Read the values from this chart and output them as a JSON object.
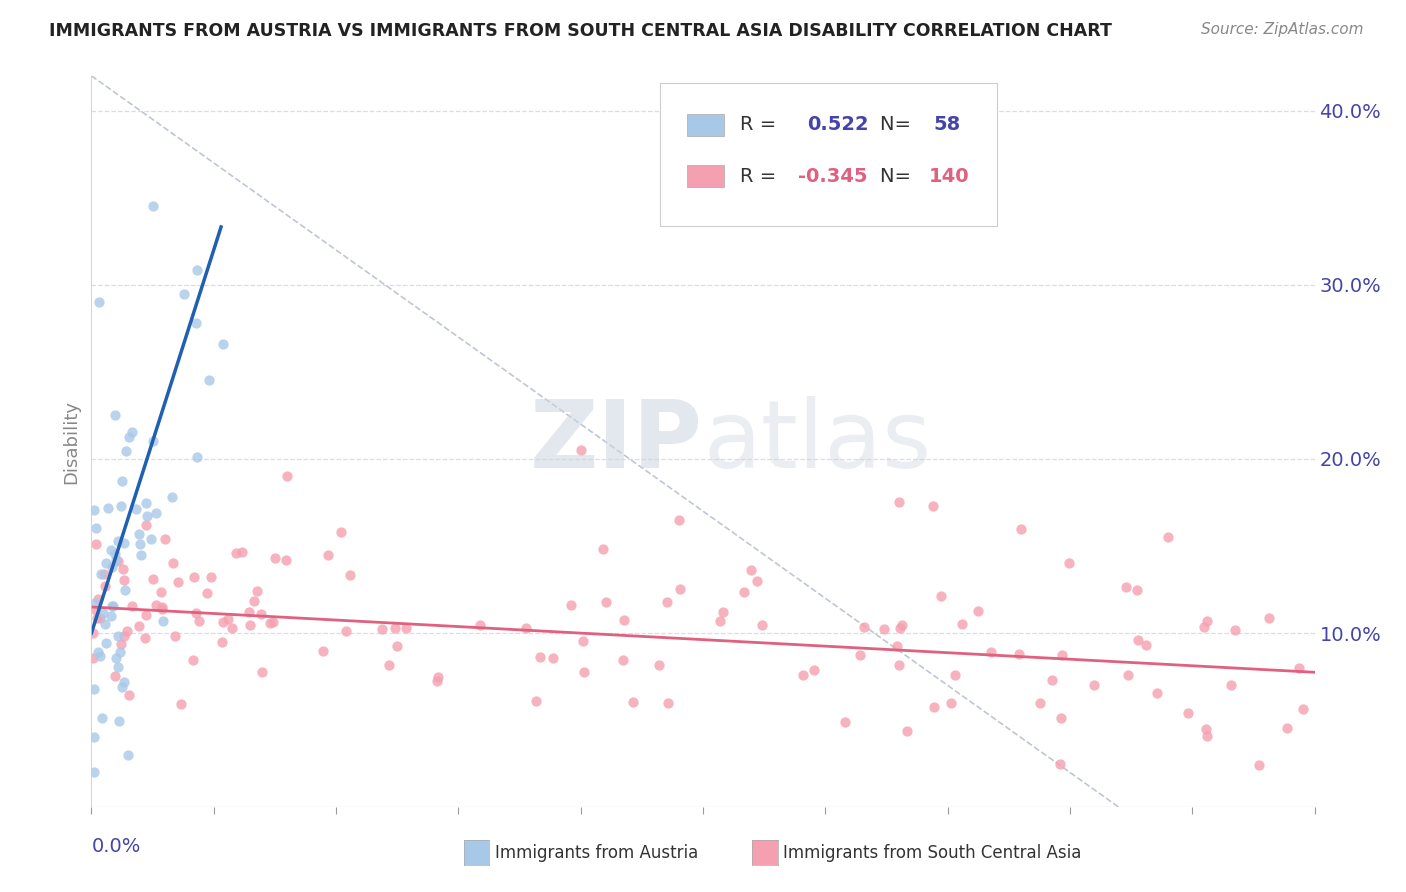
{
  "title": "IMMIGRANTS FROM AUSTRIA VS IMMIGRANTS FROM SOUTH CENTRAL ASIA DISABILITY CORRELATION CHART",
  "source": "Source: ZipAtlas.com",
  "ylabel": "Disability",
  "xlim": [
    0.0,
    0.5
  ],
  "ylim": [
    0.0,
    0.42
  ],
  "blue_R": 0.522,
  "blue_N": 58,
  "pink_R": -0.345,
  "pink_N": 140,
  "blue_color": "#a8c8e8",
  "pink_color": "#f4a0b0",
  "blue_line_color": "#2060b0",
  "pink_line_color": "#e06080",
  "dash_color": "#b0b8c8",
  "right_ytick_vals": [
    0.1,
    0.2,
    0.3,
    0.4
  ],
  "grid_color": "#d8dde8",
  "watermark_color": "#ccd5e0",
  "legend_blue_label": "Immigrants from Austria",
  "legend_pink_label": "Immigrants from South Central Asia",
  "title_color": "#222222",
  "source_color": "#888888",
  "axis_label_color": "#4444aa",
  "ylabel_color": "#888888"
}
